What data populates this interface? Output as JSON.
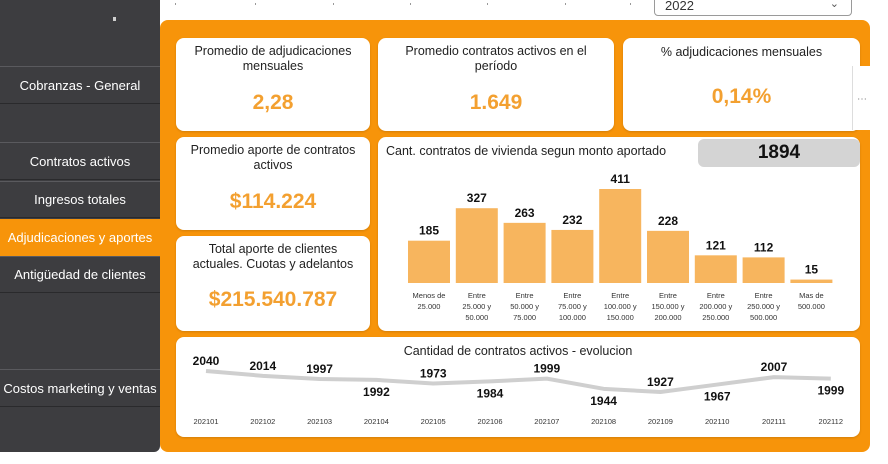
{
  "sidebar": {
    "items": [
      {
        "label": "Cobranzas - General",
        "active": false
      },
      {
        "label": "Contratos activos",
        "active": false
      },
      {
        "label": "Ingresos totales",
        "active": false
      },
      {
        "label": "Adjudicaciones y aportes",
        "active": true
      },
      {
        "label": "Antigüedad de clientes",
        "active": false
      },
      {
        "label": "Costos marketing y ventas",
        "active": false
      }
    ]
  },
  "filter": {
    "year": "2022"
  },
  "kpis": {
    "avg_awards": {
      "title": "Promedio de adjudicaciones mensuales",
      "value": "2,28"
    },
    "avg_active": {
      "title": "Promedio contratos activos en el período",
      "value": "1.649"
    },
    "pct_awards": {
      "title": "% adjudicaciones mensuales",
      "value": "0,14%"
    },
    "avg_contribution": {
      "title": "Promedio aporte de contratos activos",
      "value": "$114.224"
    },
    "total_contribution": {
      "title": "Total aporte de clientes actuales. Cuotas y adelantos",
      "value": "$215.540.787"
    }
  },
  "housing": {
    "count": "1894"
  },
  "chart_data": [
    {
      "type": "bar",
      "title": "Cant. contratos de vivienda segun monto aportado",
      "categories": [
        [
          "Menos de",
          "25.000"
        ],
        [
          "Entre",
          "25.000 y",
          "50.000"
        ],
        [
          "Entre",
          "50.000 y",
          "75.000"
        ],
        [
          "Entre",
          "75.000 y",
          "100.000"
        ],
        [
          "Entre",
          "100.000 y",
          "150.000"
        ],
        [
          "Entre",
          "150.000 y",
          "200.000"
        ],
        [
          "Entre",
          "200.000 y",
          "250.000"
        ],
        [
          "Entre",
          "250.000 y",
          "500.000"
        ],
        [
          "Mas de",
          "500.000"
        ]
      ],
      "values": [
        185,
        327,
        263,
        232,
        411,
        228,
        121,
        112,
        15
      ],
      "color": "#f7b55e",
      "ylim": [
        0,
        411
      ]
    },
    {
      "type": "line",
      "title": "Cantidad de contratos activos - evolucion",
      "x": [
        "202101",
        "202102",
        "202103",
        "202104",
        "202105",
        "202106",
        "202107",
        "202108",
        "202109",
        "202110",
        "202111",
        "202112"
      ],
      "values": [
        2040,
        2014,
        1997,
        1992,
        1973,
        1984,
        1999,
        1944,
        1927,
        1967,
        2007,
        1999
      ],
      "color": "#cfcfcf"
    }
  ],
  "colors": {
    "accent": "#f7940a",
    "value": "#f3a030",
    "sidebar": "#3d3d40"
  }
}
